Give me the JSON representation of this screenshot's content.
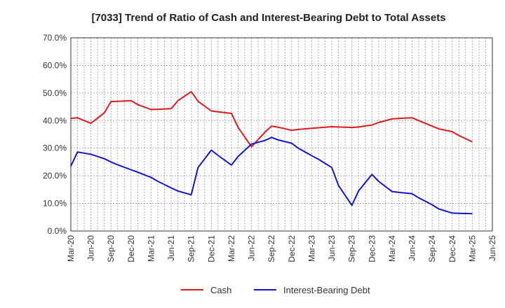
{
  "chart_data": {
    "type": "line",
    "title": "[7033]  Trend of Ratio of Cash and Interest-Bearing Debt to Total Assets",
    "xlabel": "",
    "ylabel": "",
    "x_ticks": [
      "Mar-20",
      "Jun-20",
      "Sep-20",
      "Dec-20",
      "Mar-21",
      "Jun-21",
      "Sep-21",
      "Dec-21",
      "Mar-22",
      "Jun-22",
      "Sep-22",
      "Dec-22",
      "Mar-23",
      "Jun-23",
      "Sep-23",
      "Dec-23",
      "Mar-24",
      "Jun-24",
      "Sep-24",
      "Dec-24",
      "Mar-25",
      "Jun-25"
    ],
    "x_range": [
      "2020-03",
      "2025-06"
    ],
    "y_ticks": [
      "0.0%",
      "10.0%",
      "20.0%",
      "30.0%",
      "40.0%",
      "50.0%",
      "60.0%",
      "70.0%"
    ],
    "ylim": [
      0,
      70
    ],
    "grid": true,
    "legend_position": "bottom",
    "series": [
      {
        "name": "Cash",
        "color": "#e31a1c",
        "x": [
          "2020-03",
          "2020-04",
          "2020-06",
          "2020-08",
          "2020-09",
          "2020-10",
          "2020-12",
          "2021-01",
          "2021-03",
          "2021-04",
          "2021-06",
          "2021-07",
          "2021-09",
          "2021-10",
          "2021-12",
          "2022-01",
          "2022-03",
          "2022-04",
          "2022-06",
          "2022-08",
          "2022-09",
          "2022-10",
          "2022-12",
          "2023-01",
          "2023-03",
          "2023-04",
          "2023-06",
          "2023-07",
          "2023-09",
          "2023-10",
          "2023-12",
          "2024-01",
          "2024-03",
          "2024-04",
          "2024-06",
          "2024-07",
          "2024-09",
          "2024-10",
          "2024-12",
          "2025-01",
          "2025-03"
        ],
        "values": [
          40.8,
          41.0,
          39.0,
          42.8,
          46.9,
          47.0,
          47.2,
          45.8,
          44.0,
          44.1,
          44.3,
          47.2,
          50.5,
          47.0,
          43.5,
          43.2,
          42.6,
          37.5,
          30.5,
          35.8,
          38.0,
          37.6,
          36.5,
          36.8,
          37.2,
          37.4,
          37.8,
          37.7,
          37.5,
          37.7,
          38.4,
          39.3,
          40.6,
          40.8,
          41.0,
          40.0,
          38.0,
          37.0,
          36.0,
          34.6,
          32.3
        ]
      },
      {
        "name": "Interest-Bearing Debt",
        "color": "#1414d2",
        "x": [
          "2020-03",
          "2020-04",
          "2020-06",
          "2020-08",
          "2020-09",
          "2020-10",
          "2020-12",
          "2021-01",
          "2021-03",
          "2021-04",
          "2021-06",
          "2021-07",
          "2021-09",
          "2021-10",
          "2021-12",
          "2022-01",
          "2022-03",
          "2022-04",
          "2022-06",
          "2022-08",
          "2022-09",
          "2022-10",
          "2022-12",
          "2023-01",
          "2023-03",
          "2023-04",
          "2023-06",
          "2023-07",
          "2023-09",
          "2023-10",
          "2023-12",
          "2024-01",
          "2024-03",
          "2024-04",
          "2024-06",
          "2024-07",
          "2024-09",
          "2024-10",
          "2024-12",
          "2025-01",
          "2025-03"
        ],
        "values": [
          23.5,
          28.6,
          27.8,
          26.2,
          25.0,
          24.0,
          22.2,
          21.3,
          19.4,
          18.0,
          15.6,
          14.5,
          13.1,
          23.0,
          29.3,
          27.4,
          23.9,
          27.0,
          31.5,
          32.8,
          33.9,
          33.0,
          31.8,
          30.0,
          27.3,
          26.0,
          23.0,
          16.5,
          9.3,
          14.5,
          20.5,
          18.0,
          14.3,
          14.0,
          13.5,
          12.0,
          9.5,
          8.0,
          6.5,
          6.4,
          6.3
        ]
      }
    ]
  }
}
